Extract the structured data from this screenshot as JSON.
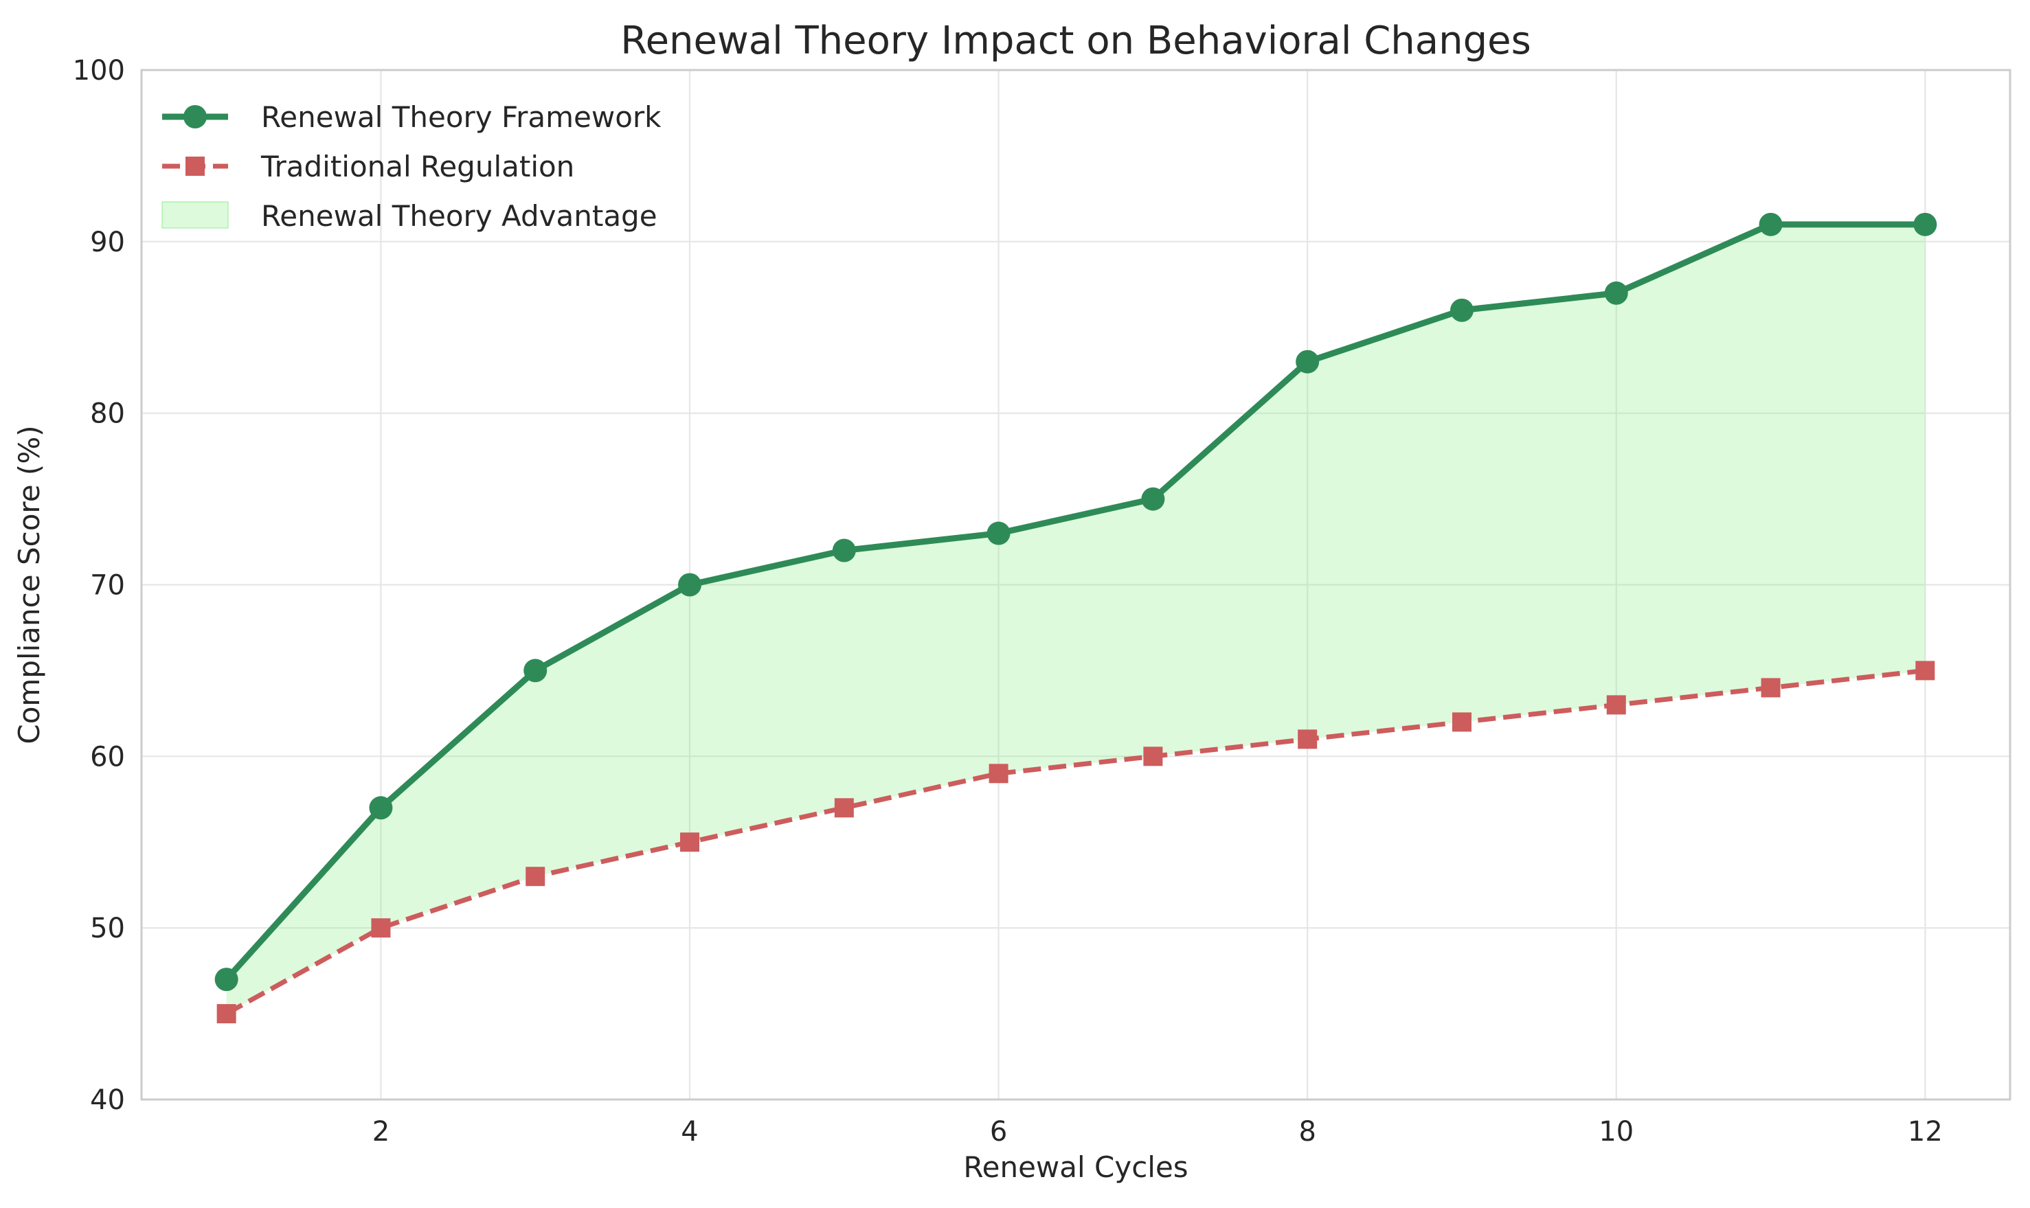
{
  "chart_data": {
    "type": "line",
    "title": "Renewal Theory Impact on Behavioral Changes",
    "xlabel": "Renewal Cycles",
    "ylabel": "Compliance Score (%)",
    "x": [
      1,
      2,
      3,
      4,
      5,
      6,
      7,
      8,
      9,
      10,
      11,
      12
    ],
    "xlim": [
      0.45,
      12.55
    ],
    "ylim": [
      40,
      100
    ],
    "xticks": [
      2,
      4,
      6,
      8,
      10,
      12
    ],
    "yticks": [
      40,
      50,
      60,
      70,
      80,
      90,
      100
    ],
    "grid": true,
    "legend_position": "top-left",
    "series": [
      {
        "name": "Renewal Theory Framework",
        "values": [
          47,
          57,
          65,
          70,
          72,
          73,
          75,
          83,
          86,
          87,
          91,
          91
        ],
        "color": "#2e8b57",
        "line_style": "solid",
        "marker": "circle"
      },
      {
        "name": "Traditional Regulation",
        "values": [
          45,
          50,
          53,
          55,
          57,
          59,
          60,
          61,
          62,
          63,
          64,
          65
        ],
        "color": "#cd5c5c",
        "line_style": "dashed",
        "marker": "square"
      }
    ],
    "fill_between": {
      "name": "Renewal Theory Advantage",
      "color": "#90ee90",
      "opacity": 0.3
    }
  }
}
